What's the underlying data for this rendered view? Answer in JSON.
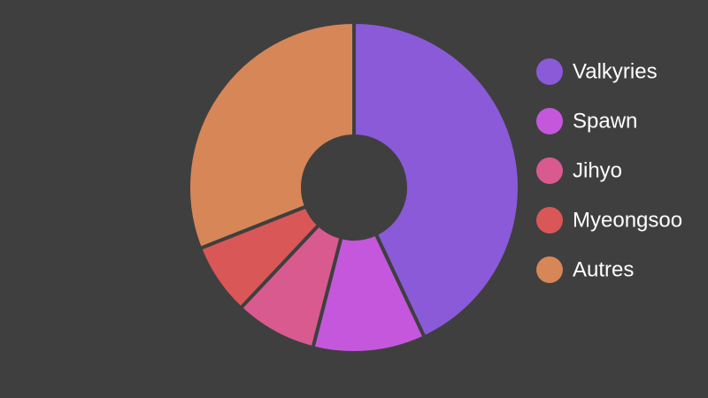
{
  "chart_data": {
    "type": "donut",
    "categories": [
      "Valkyries",
      "Spawn",
      "Jihyo",
      "Myeongsoo",
      "Autres"
    ],
    "values": [
      43,
      11,
      8,
      7,
      31
    ],
    "colors": [
      "#8a5ad8",
      "#c457dc",
      "#d95a8f",
      "#d95757",
      "#d78657"
    ],
    "legend": "right"
  }
}
